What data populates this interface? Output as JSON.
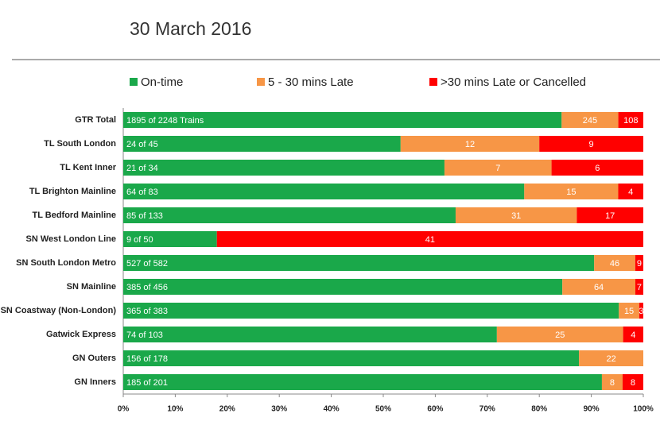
{
  "chart_data": {
    "type": "stacked_bar_100",
    "orientation": "horizontal",
    "title": "30 March 2016",
    "categories": [
      "GTR Total",
      "TL South London",
      "TL Kent Inner",
      "TL Brighton Mainline",
      "TL Bedford Mainline",
      "SN West London Line",
      "SN South London Metro",
      "SN Mainline",
      "SN Coastway (Non-London)",
      "Gatwick Express",
      "GN Outers",
      "GN Inners"
    ],
    "series": [
      {
        "name": "On-time",
        "color": "#1aa84a",
        "values": [
          1895,
          24,
          21,
          64,
          85,
          9,
          527,
          385,
          365,
          74,
          156,
          185
        ],
        "value_labels": [
          "1895 of 2248 Trains",
          "24 of 45",
          "21 of 34",
          "64 of 83",
          "85 of 133",
          "9 of 50",
          "527 of 582",
          "385 of 456",
          "365 of 383",
          "74 of 103",
          "156 of 178",
          "185 of 201"
        ]
      },
      {
        "name": "5 - 30 mins Late",
        "color": "#f79646",
        "values": [
          245,
          12,
          7,
          15,
          31,
          0,
          46,
          64,
          15,
          25,
          22,
          8
        ]
      },
      {
        "name": ">30 mins Late or Cancelled",
        "color": "#ff0000",
        "values": [
          108,
          9,
          6,
          4,
          17,
          41,
          9,
          7,
          3,
          4,
          0,
          8
        ]
      }
    ],
    "xlim": [
      0,
      100
    ],
    "xticks": [
      {
        "value": 0,
        "label": "0%"
      },
      {
        "value": 10,
        "label": "10%"
      },
      {
        "value": 20,
        "label": "20%"
      },
      {
        "value": 30,
        "label": "30%"
      },
      {
        "value": 40,
        "label": "40%"
      },
      {
        "value": 50,
        "label": "50%"
      },
      {
        "value": 60,
        "label": "60%"
      },
      {
        "value": 70,
        "label": "70%"
      },
      {
        "value": 80,
        "label": "80%"
      },
      {
        "value": 90,
        "label": "90%"
      },
      {
        "value": 100,
        "label": "100%"
      }
    ],
    "legend": "top",
    "grid": false
  }
}
